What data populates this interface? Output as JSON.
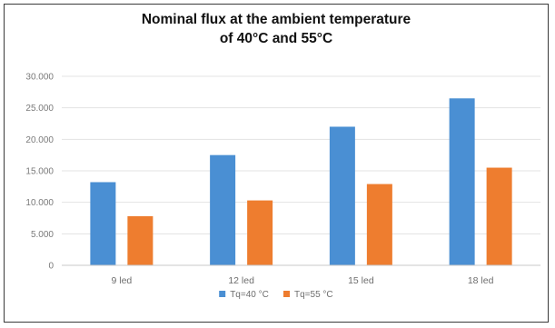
{
  "chart_data": {
    "type": "bar",
    "title_lines": [
      "Nominal flux at the ambient temperature",
      "of 40°C and 55°C"
    ],
    "categories": [
      "9 led",
      "12 led",
      "15 led",
      "18 led"
    ],
    "series": [
      {
        "name": "Tq=40 °C",
        "color": "#4a8fd3",
        "values": [
          13200,
          17500,
          22000,
          26500
        ]
      },
      {
        "name": "Tq=55 °C",
        "color": "#ee7d2f",
        "values": [
          7800,
          10300,
          12900,
          15500
        ]
      }
    ],
    "y_ticks": [
      0,
      5000,
      10000,
      15000,
      20000,
      25000,
      30000
    ],
    "y_tick_labels": [
      "0",
      "5.000",
      "10.000",
      "15.000",
      "20.000",
      "25.000",
      "30.000"
    ],
    "ylim": [
      0,
      30000
    ],
    "grid": true,
    "legend": "bottom-center",
    "xlabel": "",
    "ylabel": ""
  }
}
